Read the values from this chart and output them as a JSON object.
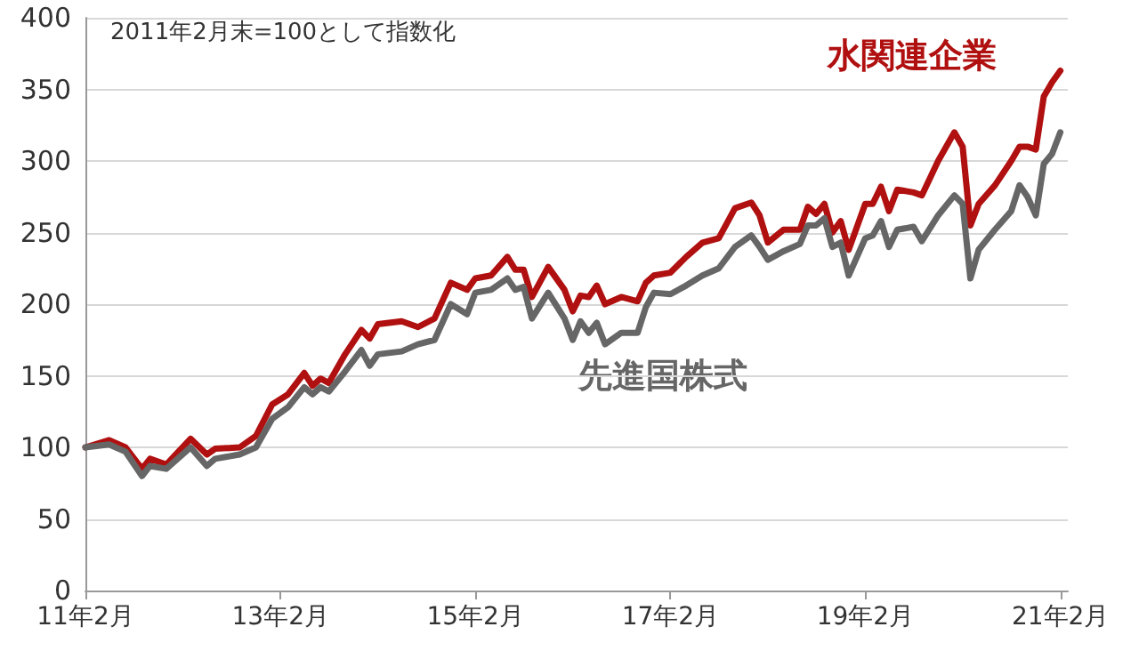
{
  "chart_data": {
    "type": "line",
    "annotations": [
      "2011年2月末=100として指数化"
    ],
    "x": [
      "2011-02",
      "2011-05",
      "2011-07",
      "2011-09",
      "2011-10",
      "2011-12",
      "2012-03",
      "2012-05",
      "2012-06",
      "2012-09",
      "2012-11",
      "2013-01",
      "2013-03",
      "2013-05",
      "2013-06",
      "2013-07",
      "2013-08",
      "2013-10",
      "2013-12",
      "2014-01",
      "2014-02",
      "2014-05",
      "2014-07",
      "2014-09",
      "2014-11",
      "2015-01",
      "2015-02",
      "2015-04",
      "2015-06",
      "2015-07",
      "2015-08",
      "2015-09",
      "2015-11",
      "2016-01",
      "2016-02",
      "2016-03",
      "2016-04",
      "2016-05",
      "2016-06",
      "2016-08",
      "2016-10",
      "2016-11",
      "2016-12",
      "2017-02",
      "2017-04",
      "2017-06",
      "2017-08",
      "2017-10",
      "2017-12",
      "2018-01",
      "2018-02",
      "2018-04",
      "2018-06",
      "2018-07",
      "2018-08",
      "2018-09",
      "2018-10",
      "2018-11",
      "2018-12",
      "2019-02",
      "2019-03",
      "2019-04",
      "2019-05",
      "2019-06",
      "2019-08",
      "2019-09",
      "2019-11",
      "2020-01",
      "2020-02",
      "2020-03",
      "2020-04",
      "2020-06",
      "2020-08",
      "2020-09",
      "2020-10",
      "2020-11",
      "2020-12",
      "2021-01",
      "2021-02"
    ],
    "series": [
      {
        "name": "水関連企業",
        "color": "#b01010",
        "values": [
          100,
          105,
          100,
          85,
          92,
          88,
          106,
          95,
          99,
          100,
          108,
          130,
          137,
          152,
          143,
          148,
          145,
          165,
          182,
          176,
          186,
          188,
          184,
          190,
          215,
          210,
          218,
          220,
          233,
          224,
          224,
          205,
          226,
          210,
          195,
          206,
          205,
          213,
          200,
          205,
          202,
          215,
          220,
          222,
          233,
          243,
          246,
          267,
          271,
          262,
          243,
          252,
          252,
          268,
          263,
          270,
          250,
          258,
          238,
          270,
          270,
          282,
          265,
          280,
          278,
          276,
          300,
          320,
          310,
          255,
          270,
          283,
          300,
          310,
          310,
          308,
          345,
          355,
          363
        ]
      },
      {
        "name": "先進国株式",
        "color": "#666666",
        "values": [
          100,
          102,
          97,
          80,
          87,
          85,
          100,
          87,
          92,
          95,
          100,
          120,
          128,
          142,
          137,
          142,
          139,
          153,
          168,
          157,
          165,
          167,
          172,
          175,
          200,
          193,
          208,
          210,
          218,
          210,
          212,
          190,
          208,
          190,
          175,
          188,
          180,
          187,
          172,
          180,
          180,
          198,
          208,
          207,
          213,
          220,
          225,
          240,
          248,
          240,
          231,
          237,
          242,
          255,
          255,
          260,
          240,
          243,
          220,
          246,
          248,
          258,
          240,
          252,
          254,
          244,
          262,
          276,
          270,
          218,
          238,
          252,
          265,
          283,
          275,
          262,
          298,
          305,
          320
        ]
      }
    ],
    "xlim": [
      "2011-02",
      "2021-03"
    ],
    "xticks": [
      {
        "value": "2011-02",
        "label": "11年2月"
      },
      {
        "value": "2013-02",
        "label": "13年2月"
      },
      {
        "value": "2015-02",
        "label": "15年2月"
      },
      {
        "value": "2017-02",
        "label": "17年2月"
      },
      {
        "value": "2019-02",
        "label": "19年2月"
      },
      {
        "value": "2021-02",
        "label": "21年2月"
      }
    ],
    "ylim": [
      0,
      400
    ],
    "yticks": [
      0,
      50,
      100,
      150,
      200,
      250,
      300,
      350,
      400
    ],
    "grid": "y",
    "legend": false,
    "marker": "none",
    "line_style": "solid"
  }
}
